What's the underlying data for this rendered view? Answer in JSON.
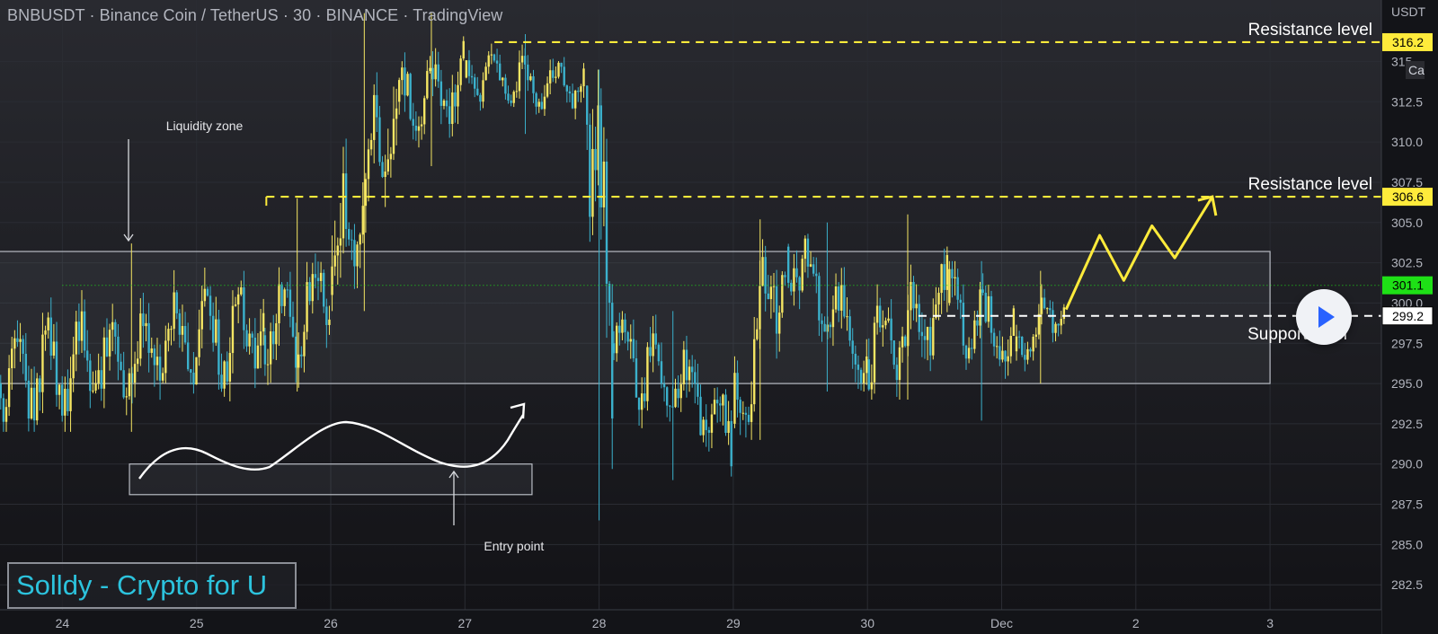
{
  "header": {
    "title": "BNBUSDT · Binance Coin / TetherUS · 30 · BINANCE · TradingView",
    "currency": "USDT",
    "partial_label": "Ca"
  },
  "brand": {
    "text": "Solldy - Crypto for U"
  },
  "colors": {
    "background": "#15161a",
    "candle_up": "#f5e663",
    "candle_down": "#3bb1cc",
    "annotation": "#ffeb3b",
    "current_price": "#1ee016"
  },
  "chart_data": {
    "type": "candlestick",
    "ylim": [
      281.0,
      318.2
    ],
    "y_ticks": [
      "282.5",
      "285.0",
      "287.5",
      "290.0",
      "292.5",
      "295.0",
      "297.5",
      "300.0",
      "302.5",
      "305.0",
      "307.5",
      "310.0",
      "312.5",
      "315"
    ],
    "x_ticks": [
      {
        "label": "24",
        "day": 0
      },
      {
        "label": "25",
        "day": 1
      },
      {
        "label": "26",
        "day": 2
      },
      {
        "label": "27",
        "day": 3
      },
      {
        "label": "28",
        "day": 4
      },
      {
        "label": "29",
        "day": 5
      },
      {
        "label": "30",
        "day": 6
      },
      {
        "label": "Dec",
        "day": 7
      },
      {
        "label": "2",
        "day": 8
      },
      {
        "label": "3",
        "day": 9
      }
    ],
    "price_tags": [
      {
        "value": 316.2,
        "label": "316.2",
        "kind": "resistance"
      },
      {
        "value": 306.6,
        "label": "306.6",
        "kind": "resistance"
      },
      {
        "value": 301.1,
        "label": "301.1",
        "kind": "current"
      },
      {
        "value": 299.2,
        "label": "299.2",
        "kind": "support"
      }
    ],
    "levels": [
      {
        "value": 316.2,
        "from_day": 3.22,
        "style": "yellow-dashed"
      },
      {
        "value": 306.6,
        "from_day": 1.52,
        "style": "yellow-dashed"
      },
      {
        "value": 299.2,
        "from_day": 6.38,
        "style": "white-dashed"
      },
      {
        "value": 301.1,
        "from_day": 0.0,
        "style": "green-dotted"
      }
    ],
    "annotations": [
      {
        "text": "Resistance level",
        "value": 316.2
      },
      {
        "text": "Resistance level",
        "value": 306.6
      },
      {
        "text": "Support level",
        "value": 299.2
      },
      {
        "text": "Liquidity zone",
        "day": 0.53,
        "value": 311.5
      },
      {
        "text": "Entry point",
        "day": 2.95,
        "value": 285.9
      }
    ],
    "zones": [
      {
        "name": "range",
        "day_from": -0.47,
        "day_to": 9.0,
        "top": 303.2,
        "bottom": 295.0
      },
      {
        "name": "entry",
        "day_from": 0.5,
        "day_to": 3.5,
        "top": 290.0,
        "bottom": 288.1
      }
    ],
    "path_points": [
      [
        2.8,
        290.0
      ],
      [
        3.22,
        297.2
      ],
      [
        3.52,
        300.2
      ],
      [
        3.7,
        296.7
      ],
      [
        3.93,
        299.2
      ],
      [
        4.1,
        297.7
      ],
      [
        4.38,
        299.2
      ]
    ],
    "projection": [
      [
        7.48,
        299.6
      ],
      [
        7.73,
        304.2
      ],
      [
        7.91,
        301.4
      ],
      [
        8.12,
        304.8
      ],
      [
        8.29,
        302.8
      ],
      [
        8.57,
        306.6
      ]
    ],
    "candles": [
      {
        "from_day": -0.47,
        "to_day": 1.5,
        "open": 295.0,
        "close": 298.6,
        "high": 303.7,
        "low": 292.0,
        "note": "range before breakout"
      },
      {
        "from_day": 1.5,
        "to_day": 2.0,
        "open": 298.0,
        "close": 300.5,
        "high": 306.5,
        "low": 294.5
      },
      {
        "from_day": 2.0,
        "to_day": 2.5,
        "open": 300.5,
        "close": 312.5,
        "high": 318.0,
        "low": 299.5
      },
      {
        "from_day": 2.5,
        "to_day": 3.0,
        "open": 312.5,
        "close": 314.0,
        "high": 318.0,
        "low": 308.5
      },
      {
        "from_day": 3.0,
        "to_day": 3.9,
        "open": 314.0,
        "close": 313.5,
        "high": 316.7,
        "low": 310.5
      },
      {
        "from_day": 3.9,
        "to_day": 4.1,
        "open": 313.5,
        "close": 297.5,
        "high": 314.5,
        "low": 286.5
      },
      {
        "from_day": 4.1,
        "to_day": 5.0,
        "open": 297.5,
        "close": 292.5,
        "high": 299.5,
        "low": 289.0
      },
      {
        "from_day": 5.0,
        "to_day": 5.4,
        "open": 292.5,
        "close": 303.5,
        "high": 305.2,
        "low": 291.5
      },
      {
        "from_day": 5.4,
        "to_day": 6.0,
        "open": 303.5,
        "close": 296.5,
        "high": 305.0,
        "low": 294.5
      },
      {
        "from_day": 6.0,
        "to_day": 6.6,
        "open": 296.5,
        "close": 300.0,
        "high": 305.5,
        "low": 294.0
      },
      {
        "from_day": 6.6,
        "to_day": 7.1,
        "open": 300.0,
        "close": 297.0,
        "high": 302.6,
        "low": 292.7
      },
      {
        "from_day": 7.1,
        "to_day": 7.48,
        "open": 297.0,
        "close": 299.8,
        "high": 302.0,
        "low": 295.0
      }
    ]
  }
}
